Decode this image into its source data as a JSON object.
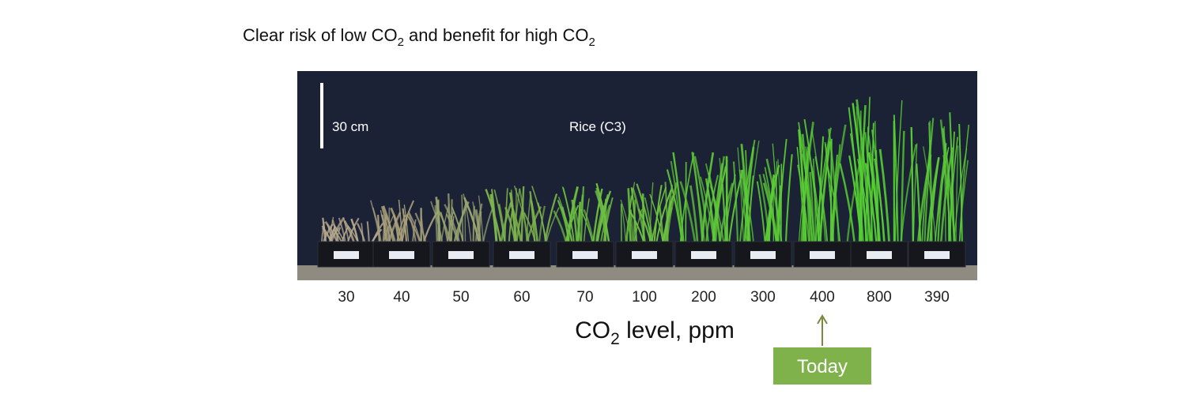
{
  "title": {
    "parts": [
      "Clear risk of low CO",
      "2",
      " and benefit for high CO",
      "2"
    ]
  },
  "photo": {
    "scale_label": "30 cm",
    "caption": "Rice (C3)"
  },
  "co2_levels": [
    30,
    40,
    50,
    60,
    70,
    100,
    200,
    300,
    400,
    800,
    390
  ],
  "axis_label": {
    "parts": [
      "CO",
      "2",
      " level,  ppm"
    ]
  },
  "marker": {
    "label": "Today"
  }
}
